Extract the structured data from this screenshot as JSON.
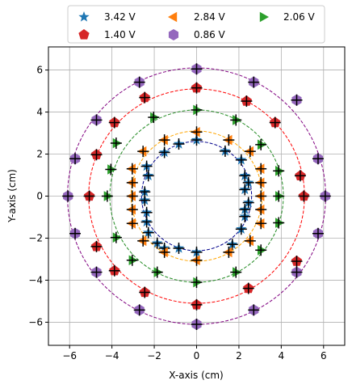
{
  "chart_data": {
    "type": "scatter",
    "xlabel": "X-axis (cm)",
    "ylabel": "Y-axis (cm)",
    "xlim": [
      -7,
      7
    ],
    "ylim": [
      -7.1,
      7.1
    ],
    "xticks": [
      -6,
      -4,
      -2,
      0,
      2,
      4,
      6
    ],
    "yticks": [
      -6,
      -4,
      -2,
      0,
      2,
      4,
      6
    ],
    "grid": true,
    "legend_position": "top-center-outside",
    "error_bar_color": "#000000",
    "series": [
      {
        "name": "3.42 V",
        "color": "#1f77b4",
        "marker": "star",
        "circle": {
          "rx": 2.6,
          "ry": 2.6,
          "color": "#00008b"
        },
        "points": [
          [
            0,
            2.67
          ],
          [
            1.35,
            2.14
          ],
          [
            2.11,
            1.72
          ],
          [
            2.28,
            0.97
          ],
          [
            2.45,
            0.64
          ],
          [
            2.28,
            0.31
          ],
          [
            2.45,
            -0.31
          ],
          [
            2.28,
            -0.64
          ],
          [
            2.28,
            -0.97
          ],
          [
            2.11,
            -1.57
          ],
          [
            1.69,
            -2.3
          ],
          [
            0,
            -2.67
          ],
          [
            -0.84,
            -2.48
          ],
          [
            -1.52,
            -2.48
          ],
          [
            -1.86,
            -2.24
          ],
          [
            -2.28,
            -1.74
          ],
          [
            -2.36,
            -1.23
          ],
          [
            -2.36,
            -0.78
          ],
          [
            -2.45,
            -0.2
          ],
          [
            -2.45,
            0.2
          ],
          [
            -2.28,
            0.97
          ],
          [
            -2.36,
            1.42
          ],
          [
            -1.52,
            2.08
          ],
          [
            -0.84,
            2.48
          ]
        ]
      },
      {
        "name": "2.84 V",
        "color": "#ff7f0e",
        "marker": "triangle-left",
        "circle": {
          "rx": 3.1,
          "ry": 3.1,
          "color": "#ffa500"
        },
        "points": [
          [
            0,
            3.05
          ],
          [
            1.52,
            2.67
          ],
          [
            2.53,
            2.13
          ],
          [
            3.04,
            1.3
          ],
          [
            3.04,
            0.64
          ],
          [
            3.04,
            0
          ],
          [
            3.04,
            -0.64
          ],
          [
            3.04,
            -1.3
          ],
          [
            2.53,
            -2.13
          ],
          [
            1.52,
            -2.67
          ],
          [
            0,
            -3.05
          ],
          [
            -1.52,
            -2.67
          ],
          [
            -2.53,
            -2.13
          ],
          [
            -3.04,
            -1.3
          ],
          [
            -3.04,
            -0.64
          ],
          [
            -3.04,
            0
          ],
          [
            -3.04,
            0.64
          ],
          [
            -3.04,
            1.3
          ],
          [
            -2.53,
            2.13
          ],
          [
            -1.52,
            2.67
          ]
        ]
      },
      {
        "name": "2.06 V",
        "color": "#2ca02c",
        "marker": "triangle-right",
        "circle": {
          "rx": 4.1,
          "ry": 4.1,
          "color": "#228b22"
        },
        "points": [
          [
            0,
            4.1
          ],
          [
            1.86,
            3.62
          ],
          [
            3.04,
            2.45
          ],
          [
            3.88,
            1.2
          ],
          [
            3.88,
            0
          ],
          [
            3.88,
            -1.27
          ],
          [
            3.04,
            -2.57
          ],
          [
            1.86,
            -3.62
          ],
          [
            0,
            -4.1
          ],
          [
            -1.86,
            -3.62
          ],
          [
            -3.04,
            -3.05
          ],
          [
            -3.8,
            -1.97
          ],
          [
            -4.22,
            0
          ],
          [
            -4.05,
            1.27
          ],
          [
            -3.8,
            2.52
          ],
          [
            -2.03,
            3.75
          ]
        ]
      },
      {
        "name": "1.40 V",
        "color": "#d62728",
        "marker": "pentagon",
        "circle": {
          "rx": 5.1,
          "ry": 5.1,
          "color": "#ff0000"
        },
        "points": [
          [
            0,
            5.15
          ],
          [
            2.36,
            4.52
          ],
          [
            3.71,
            3.5
          ],
          [
            4.9,
            0.97
          ],
          [
            5.07,
            0
          ],
          [
            4.73,
            -3.1
          ],
          [
            2.45,
            -4.39
          ],
          [
            0,
            -5.17
          ],
          [
            -2.45,
            -4.58
          ],
          [
            -3.88,
            -3.55
          ],
          [
            -4.73,
            -2.4
          ],
          [
            -5.07,
            0
          ],
          [
            -4.73,
            1.97
          ],
          [
            -3.88,
            3.5
          ],
          [
            -2.45,
            4.69
          ]
        ]
      },
      {
        "name": "0.86 V",
        "color": "#9467bd",
        "marker": "hexagon",
        "circle": {
          "rx": 6.1,
          "ry": 6.1,
          "color": "#800080"
        },
        "points": [
          [
            0,
            6.05
          ],
          [
            2.7,
            5.42
          ],
          [
            4.73,
            4.57
          ],
          [
            5.74,
            1.78
          ],
          [
            6.08,
            0
          ],
          [
            5.74,
            -1.78
          ],
          [
            4.73,
            -3.62
          ],
          [
            2.7,
            -5.42
          ],
          [
            0,
            -6.1
          ],
          [
            -2.7,
            -5.42
          ],
          [
            -4.73,
            -3.62
          ],
          [
            -5.74,
            -1.78
          ],
          [
            -6.08,
            0
          ],
          [
            -5.74,
            1.78
          ],
          [
            -4.73,
            3.62
          ],
          [
            -2.7,
            5.42
          ]
        ]
      }
    ]
  }
}
